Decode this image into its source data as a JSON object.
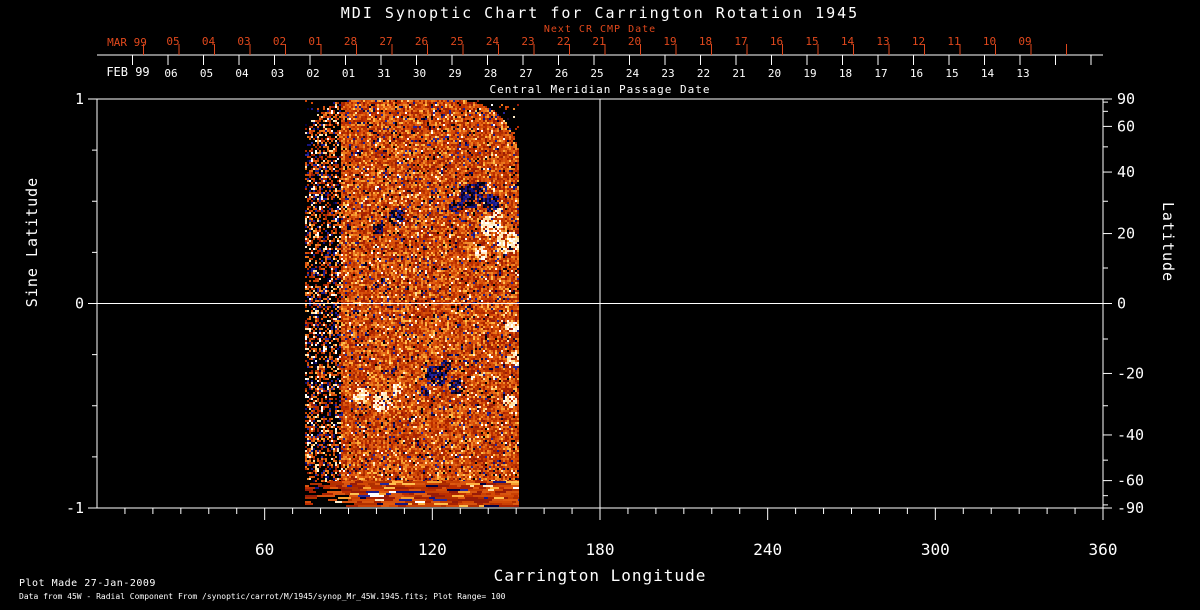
{
  "title": "MDI Synoptic Chart for Carrington Rotation 1945",
  "colors": {
    "background": "#000000",
    "foreground": "#ffffff",
    "date_red": "#e0481c"
  },
  "date_axis": {
    "next_cr_label": "Next CR CMP Date",
    "axis_title": "Central Meridian Passage Date",
    "red_month_label": "MAR 99",
    "white_month_label": "FEB 99",
    "red_days": [
      "05",
      "04",
      "03",
      "02",
      "01",
      "28",
      "27",
      "26",
      "25",
      "24",
      "23",
      "22",
      "21",
      "20",
      "19",
      "18",
      "17",
      "16",
      "15",
      "14",
      "13",
      "12",
      "11",
      "10",
      "09"
    ],
    "white_days": [
      "06",
      "05",
      "04",
      "03",
      "02",
      "01",
      "31",
      "30",
      "29",
      "28",
      "27",
      "26",
      "25",
      "24",
      "23",
      "22",
      "21",
      "20",
      "19",
      "18",
      "17",
      "16",
      "15",
      "14",
      "13"
    ]
  },
  "x_axis": {
    "title": "Carrington Longitude",
    "tick_labels": [
      "60",
      "120",
      "180",
      "240",
      "300",
      "360"
    ],
    "range": [
      0,
      360
    ],
    "minor_step": 10
  },
  "y_axis_left": {
    "title": "Sine Latitude",
    "tick_labels": [
      "1",
      "0",
      "-1"
    ],
    "minor_ticks": [
      0.75,
      0.5,
      0.25,
      -0.25,
      -0.5,
      -0.75
    ],
    "range": [
      -1,
      1
    ]
  },
  "y_axis_right": {
    "title": "Latitude",
    "tick_labels": [
      "90",
      "60",
      "40",
      "20",
      "0",
      "-20",
      "-40",
      "-60",
      "-90"
    ],
    "minor_ticks": [
      80,
      70,
      50,
      30,
      10,
      -10,
      -30,
      -50,
      -70,
      -80
    ],
    "scale": "sine"
  },
  "footer": {
    "line1": "Plot Made 27-Jan-2009",
    "line2": "Data from 45W - Radial Component From /synoptic/carrot/M/1945/synop_Mr_45W.1945.fits; Plot Range=  100"
  },
  "chart_data": {
    "type": "heatmap",
    "title": "MDI Synoptic Chart for Carrington Rotation 1945",
    "xlabel": "Carrington Longitude",
    "ylabel_left": "Sine Latitude",
    "ylabel_right": "Latitude",
    "xlim": [
      0,
      360
    ],
    "ylim_sine_latitude": [
      -1,
      1
    ],
    "grid": "off",
    "reference_lines": {
      "vertical_at_longitude": 180,
      "horizontal_at_sine_latitude": 0
    },
    "data_coverage": {
      "longitude_start": 75,
      "longitude_end": 152,
      "sine_latitude_start": -1,
      "sine_latitude_end": 1,
      "note": "magnetogram data present only for ~75-152 deg Carrington longitude; remainder of map is empty/black; top corners of data patch are rounded by projection limits"
    },
    "features": [
      {
        "kind": "dark-active-region",
        "longitude": 133,
        "latitude": 28
      },
      {
        "kind": "dark-active-region",
        "longitude": 122,
        "latitude": -20
      },
      {
        "kind": "bright-plage",
        "longitude": 140,
        "latitude": 18
      },
      {
        "kind": "bright-plage",
        "longitude": 95,
        "latitude": -27
      }
    ],
    "colormap": [
      "#000000",
      "#1c1c8e",
      "#a82200",
      "#d84a06",
      "#ee7c1c",
      "#ffb240",
      "#ffffff"
    ],
    "plot_range_gauss": 100,
    "data_source": "45W Radial Component"
  }
}
